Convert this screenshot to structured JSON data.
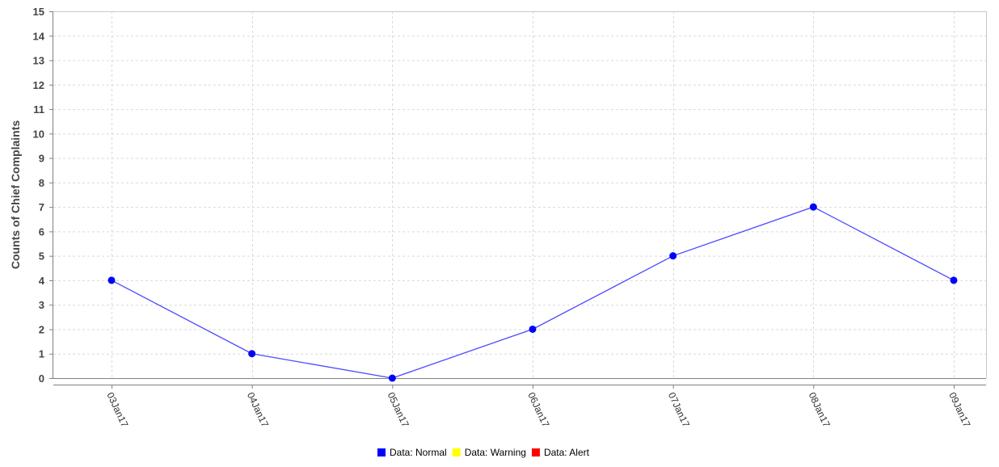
{
  "chart_data": {
    "type": "line",
    "title": "",
    "xlabel": "",
    "ylabel": "Counts of Chief Complaints",
    "categories": [
      "03Jan17",
      "04Jan17",
      "05Jan17",
      "06Jan17",
      "07Jan17",
      "08Jan17",
      "09Jan17"
    ],
    "series": [
      {
        "name": "Data: Normal",
        "values": [
          4,
          1,
          0,
          2,
          5,
          7,
          4
        ],
        "color": "#0000ff",
        "line_color": "#4a4aff"
      }
    ],
    "yticks": [
      "0",
      "1",
      "2",
      "3",
      "4",
      "5",
      "6",
      "7",
      "8",
      "9",
      "10",
      "11",
      "12",
      "13",
      "14",
      "15"
    ],
    "ylim": [
      0,
      15
    ],
    "grid": true,
    "legend_position": "bottom-center",
    "legend": [
      {
        "label": "Data: Normal",
        "color": "#0000ff"
      },
      {
        "label": "Data: Warning",
        "color": "#ffff00"
      },
      {
        "label": "Data: Alert",
        "color": "#ff0000"
      }
    ]
  }
}
